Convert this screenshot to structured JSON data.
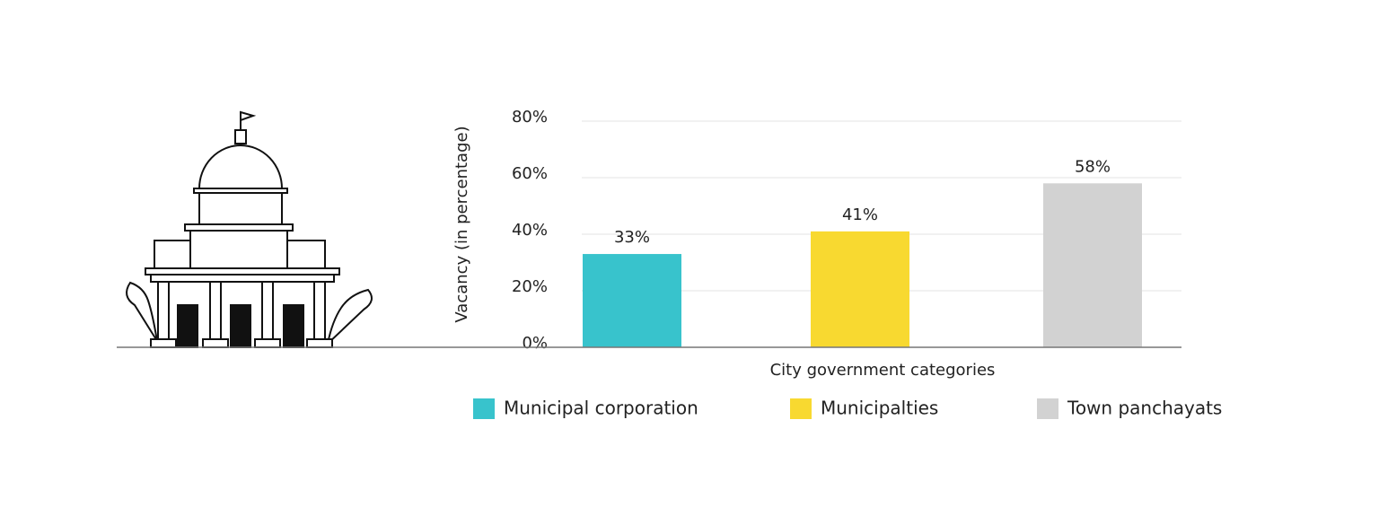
{
  "chart_data": {
    "type": "bar",
    "x_label": "City government categories",
    "y_label": "Vacancy (in percentage)",
    "categories": [
      "Municipal corporation",
      "Municipalties",
      "Town panchayats"
    ],
    "values": [
      33,
      41,
      58
    ],
    "value_labels": [
      "33%",
      "41%",
      "58%"
    ],
    "colors": [
      "#38c3cc",
      "#f8d930",
      "#d2d2d2"
    ],
    "ylim": [
      0,
      80
    ],
    "yticks": [
      {
        "value": 0,
        "label": "0%"
      },
      {
        "value": 20,
        "label": "20%"
      },
      {
        "value": 40,
        "label": "40%"
      },
      {
        "value": 60,
        "label": "60%"
      },
      {
        "value": 80,
        "label": "80%"
      }
    ],
    "grid": true,
    "legend": "bottom"
  }
}
